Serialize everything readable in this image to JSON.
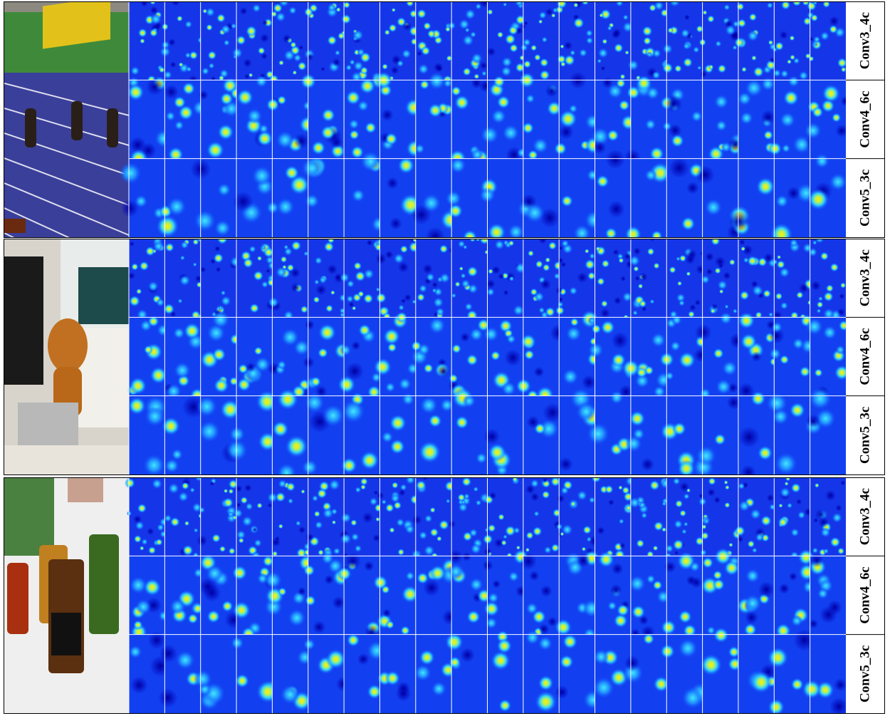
{
  "panels": [
    {
      "rows": [
        "Conv3_4c",
        "Conv4_6c",
        "Conv5_3c"
      ]
    },
    {
      "rows": [
        "Conv3_4c",
        "Conv4_6c",
        "Conv5_3c"
      ]
    },
    {
      "rows": [
        "Conv3_4c",
        "Conv4_6c",
        "Conv5_3c"
      ]
    }
  ]
}
